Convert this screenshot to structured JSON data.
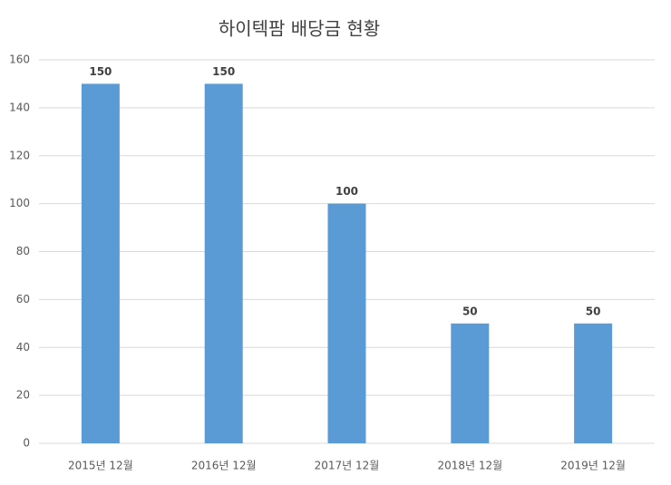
{
  "chart_data": {
    "type": "bar",
    "title": "하이텍팜 배당금 현황",
    "categories": [
      "2015년 12월",
      "2016년 12월",
      "2017년 12월",
      "2018년 12월",
      "2019년 12월"
    ],
    "values": [
      150,
      150,
      100,
      50,
      50
    ],
    "color": "#5b9bd5",
    "ylim": [
      0,
      160
    ],
    "yticks": [
      0,
      20,
      40,
      60,
      80,
      100,
      120,
      140,
      160
    ],
    "grid": true
  }
}
